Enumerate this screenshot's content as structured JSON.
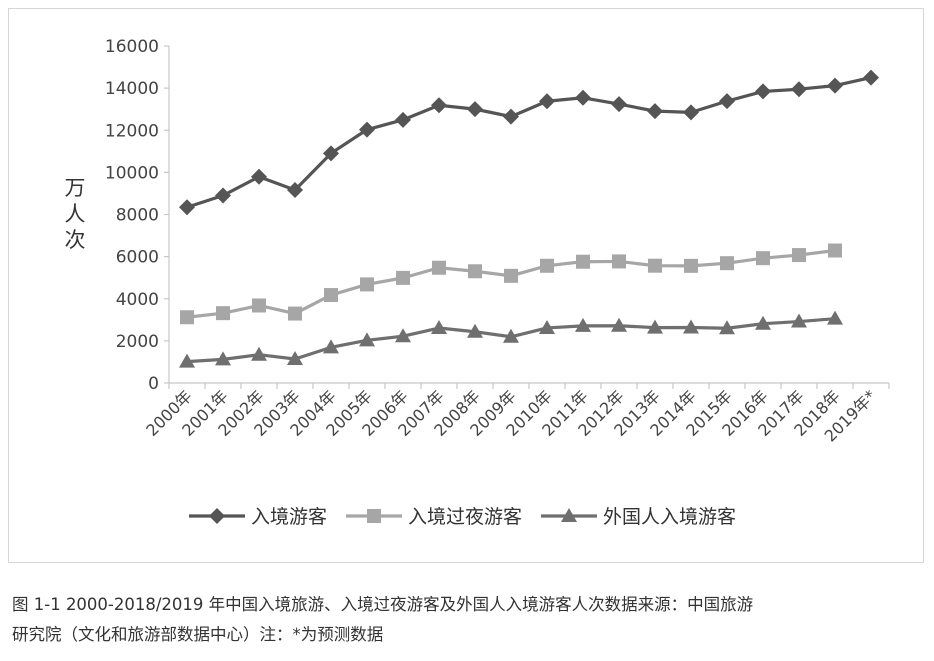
{
  "chart_data": {
    "type": "line",
    "ylabel": "万人次",
    "ylim": [
      0,
      16000
    ],
    "yticks": [
      "0",
      "2000",
      "4000",
      "6000",
      "8000",
      "10000",
      "12000",
      "14000",
      "16000"
    ],
    "categories": [
      "2000年",
      "2001年",
      "2002年",
      "2003年",
      "2004年",
      "2005年",
      "2006年",
      "2007年",
      "2008年",
      "2009年",
      "2010年",
      "2011年",
      "2012年",
      "2013年",
      "2014年",
      "2015年",
      "2016年",
      "2017年",
      "2018年",
      "2019年*"
    ],
    "legend_position": "bottom",
    "grid": false,
    "series": [
      {
        "name": "入境游客",
        "marker": "diamond",
        "color": "#555555",
        "values": [
          8344,
          8901,
          9791,
          9166,
          10904,
          12029,
          12494,
          13187,
          13003,
          12648,
          13376,
          13542,
          13241,
          12908,
          12850,
          13382,
          13844,
          13948,
          14120,
          14500
        ]
      },
      {
        "name": "入境过夜游客",
        "marker": "square",
        "color": "#a6a6a6",
        "values": [
          3122,
          3316,
          3680,
          3297,
          4176,
          4681,
          4991,
          5472,
          5305,
          5088,
          5566,
          5758,
          5772,
          5569,
          5562,
          5689,
          5927,
          6074,
          6290,
          null
        ]
      },
      {
        "name": "外国人入境游客",
        "marker": "triangle",
        "color": "#6f6f6f",
        "values": [
          1016,
          1122,
          1344,
          1140,
          1693,
          2026,
          2221,
          2611,
          2433,
          2193,
          2613,
          2711,
          2719,
          2629,
          2636,
          2599,
          2815,
          2917,
          3054,
          null
        ]
      }
    ]
  },
  "caption": {
    "line1": "图 1-1 2000-2018/2019 年中国入境旅游、入境过夜游客及外国人入境游客人次数据来源：中国旅游",
    "line2": "研究院（文化和旅游部数据中心）注：*为预测数据"
  }
}
